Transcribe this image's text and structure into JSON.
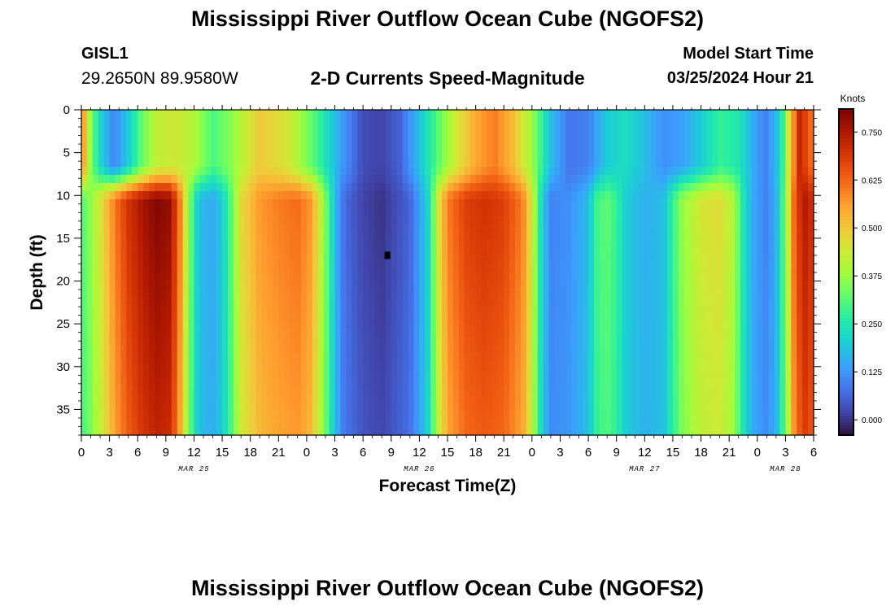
{
  "header": {
    "title": "Mississippi River Outflow Ocean Cube (NGOFS2)",
    "station": "GISL1",
    "coords": "29.2650N  89.9580W",
    "subtitle": "2-D Currents Speed-Magnitude",
    "model_label": "Model Start Time",
    "model_time": "03/25/2024 Hour 21"
  },
  "footer": {
    "title": "Mississippi River Outflow Ocean Cube (NGOFS2)"
  },
  "chart_data": {
    "type": "heatmap",
    "title": "2-D Currents Speed-Magnitude",
    "xlabel": "Forecast Time(Z)",
    "ylabel": "Depth (ft)",
    "x_tick_labels": [
      "0",
      "3",
      "6",
      "9",
      "12",
      "15",
      "18",
      "21",
      "0",
      "3",
      "6",
      "9",
      "12",
      "15",
      "18",
      "21",
      "0",
      "3",
      "6",
      "9",
      "12",
      "15",
      "18",
      "21",
      "0",
      "3",
      "6"
    ],
    "x_range_hours": [
      0,
      78
    ],
    "date_labels": [
      {
        "text": "MAR 25",
        "hour": 12
      },
      {
        "text": "MAR 26",
        "hour": 36
      },
      {
        "text": "MAR 27",
        "hour": 60
      },
      {
        "text": "MAR 28",
        "hour": 75
      }
    ],
    "y_ticks": [
      0,
      5,
      10,
      15,
      20,
      25,
      30,
      35
    ],
    "y_tick_labels": [
      "0",
      "5",
      "10",
      "15",
      "20",
      "25",
      "30",
      "35"
    ],
    "ylim": [
      0,
      38
    ],
    "y_inverted": true,
    "colorbar": {
      "unit": "Knots",
      "ticks": [
        0.0,
        0.125,
        0.25,
        0.375,
        0.5,
        0.625,
        0.75
      ],
      "tick_labels": [
        "0.000",
        "0.125",
        "0.250",
        "0.375",
        "0.500",
        "0.625",
        "0.750"
      ],
      "range": [
        -0.04,
        0.81
      ]
    },
    "colormap": [
      "#30123b",
      "#4145ab",
      "#4675ed",
      "#39a2fc",
      "#1bcfd4",
      "#24eca6",
      "#61fc6c",
      "#a4fc3b",
      "#d1e834",
      "#f3c63a",
      "#fe9b2d",
      "#f36315",
      "#d93806",
      "#b11901",
      "#7a0403"
    ],
    "surface_profile": [
      {
        "h": 0,
        "v": 0.62
      },
      {
        "h": 1,
        "v": 0.35
      },
      {
        "h": 2,
        "v": 0.22
      },
      {
        "h": 3.5,
        "v": 0.1
      },
      {
        "h": 5,
        "v": 0.2
      },
      {
        "h": 6.5,
        "v": 0.33
      },
      {
        "h": 8,
        "v": 0.42
      },
      {
        "h": 10,
        "v": 0.44
      },
      {
        "h": 12,
        "v": 0.4
      },
      {
        "h": 14,
        "v": 0.3
      },
      {
        "h": 16,
        "v": 0.36
      },
      {
        "h": 19,
        "v": 0.5
      },
      {
        "h": 22,
        "v": 0.45
      },
      {
        "h": 25,
        "v": 0.3
      },
      {
        "h": 28,
        "v": 0.12
      },
      {
        "h": 30,
        "v": 0.03
      },
      {
        "h": 32,
        "v": 0.02
      },
      {
        "h": 34,
        "v": 0.06
      },
      {
        "h": 37,
        "v": 0.25
      },
      {
        "h": 40,
        "v": 0.45
      },
      {
        "h": 42,
        "v": 0.55
      },
      {
        "h": 44,
        "v": 0.6
      },
      {
        "h": 46,
        "v": 0.52
      },
      {
        "h": 48,
        "v": 0.38
      },
      {
        "h": 50,
        "v": 0.18
      },
      {
        "h": 52,
        "v": 0.08
      },
      {
        "h": 54,
        "v": 0.1
      },
      {
        "h": 56,
        "v": 0.2
      },
      {
        "h": 58,
        "v": 0.23
      },
      {
        "h": 60,
        "v": 0.18
      },
      {
        "h": 62,
        "v": 0.12
      },
      {
        "h": 64,
        "v": 0.14
      },
      {
        "h": 66,
        "v": 0.2
      },
      {
        "h": 68,
        "v": 0.28
      },
      {
        "h": 70,
        "v": 0.25
      },
      {
        "h": 72,
        "v": 0.13
      },
      {
        "h": 73,
        "v": 0.1
      },
      {
        "h": 74.5,
        "v": 0.22
      },
      {
        "h": 75.5,
        "v": 0.5
      },
      {
        "h": 76.5,
        "v": 0.72
      },
      {
        "h": 78,
        "v": 0.6
      }
    ],
    "interior_profile": [
      {
        "h": 0,
        "v": 0.3
      },
      {
        "h": 1,
        "v": 0.37
      },
      {
        "h": 2,
        "v": 0.45
      },
      {
        "h": 3.5,
        "v": 0.6
      },
      {
        "h": 5,
        "v": 0.7
      },
      {
        "h": 6.5,
        "v": 0.76
      },
      {
        "h": 8,
        "v": 0.8
      },
      {
        "h": 9.5,
        "v": 0.78
      },
      {
        "h": 10.5,
        "v": 0.6
      },
      {
        "h": 11.5,
        "v": 0.35
      },
      {
        "h": 12.5,
        "v": 0.18
      },
      {
        "h": 14,
        "v": 0.15
      },
      {
        "h": 15,
        "v": 0.2
      },
      {
        "h": 16,
        "v": 0.32
      },
      {
        "h": 17,
        "v": 0.47
      },
      {
        "h": 19,
        "v": 0.57
      },
      {
        "h": 21,
        "v": 0.6
      },
      {
        "h": 23,
        "v": 0.62
      },
      {
        "h": 24.5,
        "v": 0.57
      },
      {
        "h": 26,
        "v": 0.35
      },
      {
        "h": 27,
        "v": 0.18
      },
      {
        "h": 28,
        "v": 0.07
      },
      {
        "h": 30,
        "v": 0.02
      },
      {
        "h": 32,
        "v": 0.0
      },
      {
        "h": 33,
        "v": 0.02
      },
      {
        "h": 35,
        "v": 0.06
      },
      {
        "h": 37,
        "v": 0.22
      },
      {
        "h": 38,
        "v": 0.45
      },
      {
        "h": 39,
        "v": 0.6
      },
      {
        "h": 41,
        "v": 0.68
      },
      {
        "h": 43,
        "v": 0.7
      },
      {
        "h": 45,
        "v": 0.68
      },
      {
        "h": 47,
        "v": 0.6
      },
      {
        "h": 48,
        "v": 0.45
      },
      {
        "h": 49,
        "v": 0.22
      },
      {
        "h": 50,
        "v": 0.1
      },
      {
        "h": 52,
        "v": 0.12
      },
      {
        "h": 54,
        "v": 0.18
      },
      {
        "h": 55,
        "v": 0.3
      },
      {
        "h": 56,
        "v": 0.32
      },
      {
        "h": 57,
        "v": 0.28
      },
      {
        "h": 58,
        "v": 0.2
      },
      {
        "h": 60,
        "v": 0.16
      },
      {
        "h": 62,
        "v": 0.18
      },
      {
        "h": 63,
        "v": 0.28
      },
      {
        "h": 64,
        "v": 0.37
      },
      {
        "h": 66,
        "v": 0.45
      },
      {
        "h": 68,
        "v": 0.47
      },
      {
        "h": 69.5,
        "v": 0.4
      },
      {
        "h": 70.5,
        "v": 0.25
      },
      {
        "h": 71.5,
        "v": 0.15
      },
      {
        "h": 73,
        "v": 0.1
      },
      {
        "h": 74,
        "v": 0.16
      },
      {
        "h": 75,
        "v": 0.35
      },
      {
        "h": 76,
        "v": 0.65
      },
      {
        "h": 77,
        "v": 0.75
      },
      {
        "h": 78,
        "v": 0.7
      }
    ],
    "marker": {
      "hour": 32.6,
      "depth": 17
    }
  }
}
